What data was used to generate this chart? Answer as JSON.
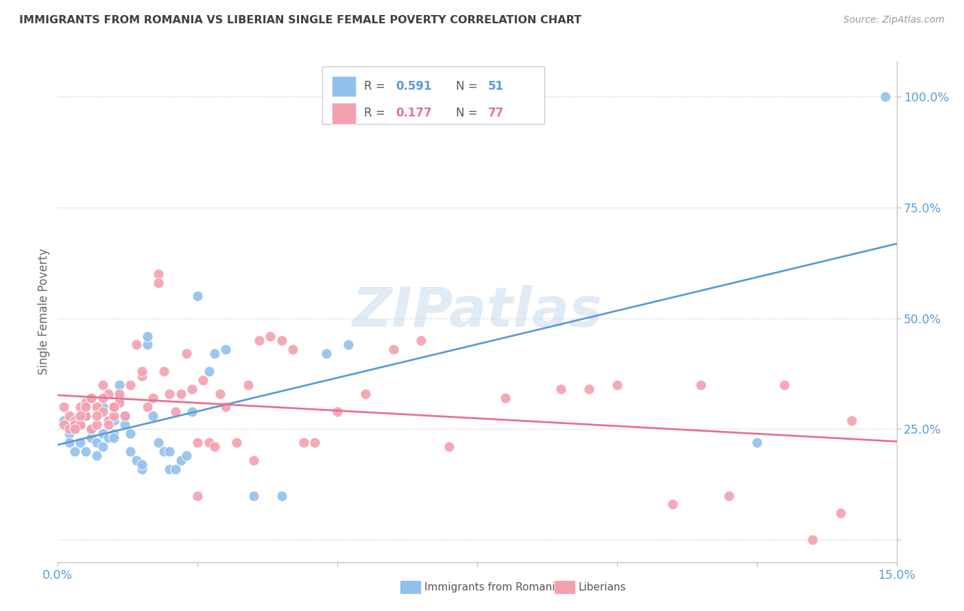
{
  "title": "IMMIGRANTS FROM ROMANIA VS LIBERIAN SINGLE FEMALE POVERTY CORRELATION CHART",
  "source": "Source: ZipAtlas.com",
  "ylabel": "Single Female Poverty",
  "xlim": [
    0.0,
    0.15
  ],
  "ylim": [
    -0.05,
    1.08
  ],
  "yticks": [
    0.0,
    0.25,
    0.5,
    0.75,
    1.0
  ],
  "ytick_labels": [
    "",
    "25.0%",
    "50.0%",
    "75.0%",
    "100.0%"
  ],
  "xticks": [
    0.0,
    0.025,
    0.05,
    0.075,
    0.1,
    0.125,
    0.15
  ],
  "xtick_labels": [
    "0.0%",
    "",
    "",
    "",
    "",
    "",
    "15.0%"
  ],
  "romania_R": 0.591,
  "romania_N": 51,
  "liberia_R": 0.177,
  "liberia_N": 77,
  "blue_color": "#92C0EC",
  "pink_color": "#F4A0B0",
  "regression_blue": "#5B9BD5",
  "regression_pink": "#E87090",
  "axis_color": "#BBBBBB",
  "grid_color": "#DDDDDD",
  "title_color": "#404040",
  "tick_color": "#5B9BD5",
  "watermark": "ZIPatlas",
  "romania_scatter_x": [
    0.001,
    0.002,
    0.002,
    0.003,
    0.003,
    0.004,
    0.004,
    0.005,
    0.005,
    0.006,
    0.006,
    0.007,
    0.007,
    0.008,
    0.008,
    0.008,
    0.009,
    0.009,
    0.01,
    0.01,
    0.01,
    0.011,
    0.011,
    0.012,
    0.012,
    0.013,
    0.013,
    0.014,
    0.015,
    0.015,
    0.016,
    0.016,
    0.017,
    0.018,
    0.019,
    0.02,
    0.02,
    0.021,
    0.022,
    0.023,
    0.024,
    0.025,
    0.027,
    0.028,
    0.03,
    0.035,
    0.04,
    0.048,
    0.052,
    0.125,
    0.148
  ],
  "romania_scatter_y": [
    0.27,
    0.24,
    0.22,
    0.25,
    0.2,
    0.22,
    0.26,
    0.2,
    0.28,
    0.23,
    0.25,
    0.19,
    0.22,
    0.21,
    0.3,
    0.24,
    0.23,
    0.27,
    0.24,
    0.23,
    0.27,
    0.32,
    0.35,
    0.26,
    0.28,
    0.24,
    0.2,
    0.18,
    0.16,
    0.17,
    0.44,
    0.46,
    0.28,
    0.22,
    0.2,
    0.2,
    0.16,
    0.16,
    0.18,
    0.19,
    0.29,
    0.55,
    0.38,
    0.42,
    0.43,
    0.1,
    0.1,
    0.42,
    0.44,
    0.22,
    1.0
  ],
  "liberia_scatter_x": [
    0.001,
    0.001,
    0.002,
    0.002,
    0.003,
    0.003,
    0.004,
    0.004,
    0.005,
    0.005,
    0.006,
    0.006,
    0.007,
    0.007,
    0.008,
    0.008,
    0.009,
    0.009,
    0.01,
    0.01,
    0.011,
    0.011,
    0.012,
    0.013,
    0.014,
    0.015,
    0.015,
    0.016,
    0.017,
    0.018,
    0.018,
    0.019,
    0.02,
    0.021,
    0.022,
    0.023,
    0.024,
    0.025,
    0.026,
    0.027,
    0.028,
    0.029,
    0.03,
    0.032,
    0.034,
    0.036,
    0.038,
    0.04,
    0.042,
    0.044,
    0.046,
    0.05,
    0.055,
    0.06,
    0.065,
    0.07,
    0.08,
    0.09,
    0.095,
    0.1,
    0.11,
    0.115,
    0.12,
    0.13,
    0.135,
    0.14,
    0.142,
    0.003,
    0.004,
    0.005,
    0.006,
    0.007,
    0.008,
    0.009,
    0.01,
    0.025,
    0.035
  ],
  "liberia_scatter_y": [
    0.26,
    0.3,
    0.28,
    0.25,
    0.27,
    0.26,
    0.3,
    0.26,
    0.31,
    0.28,
    0.25,
    0.32,
    0.26,
    0.3,
    0.29,
    0.35,
    0.27,
    0.33,
    0.28,
    0.3,
    0.31,
    0.33,
    0.28,
    0.35,
    0.44,
    0.37,
    0.38,
    0.3,
    0.32,
    0.6,
    0.58,
    0.38,
    0.33,
    0.29,
    0.33,
    0.42,
    0.34,
    0.22,
    0.36,
    0.22,
    0.21,
    0.33,
    0.3,
    0.22,
    0.35,
    0.45,
    0.46,
    0.45,
    0.43,
    0.22,
    0.22,
    0.29,
    0.33,
    0.43,
    0.45,
    0.21,
    0.32,
    0.34,
    0.34,
    0.35,
    0.08,
    0.35,
    0.1,
    0.35,
    0.0,
    0.06,
    0.27,
    0.25,
    0.28,
    0.3,
    0.32,
    0.28,
    0.32,
    0.26,
    0.3,
    0.1,
    0.18
  ]
}
